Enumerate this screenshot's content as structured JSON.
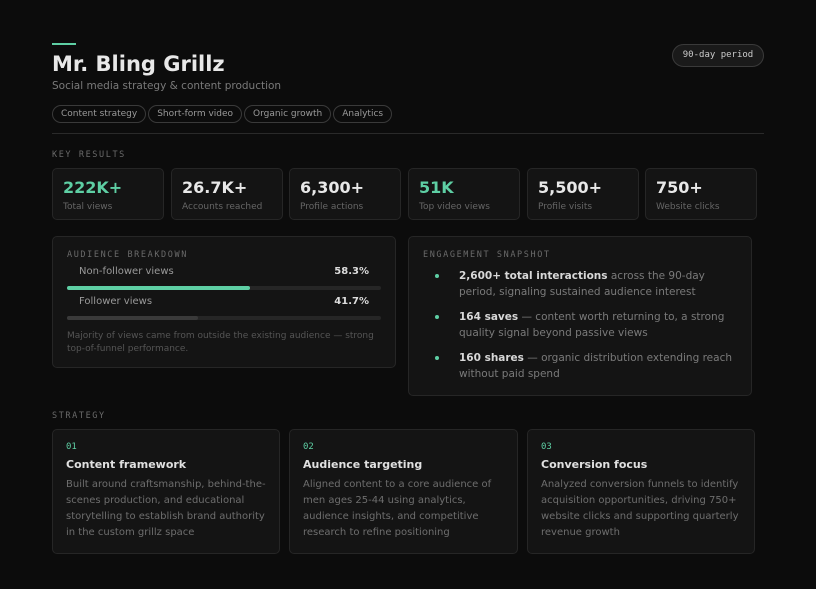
{
  "header": {
    "title": "Mr. Bling Grillz",
    "subtitle": "Social media strategy & content production",
    "tags": [
      "Content strategy",
      "Short-form video",
      "Organic growth",
      "Analytics"
    ],
    "badge": "90-day period"
  },
  "key_results": {
    "label": "KEY RESULTS",
    "items": [
      {
        "value": "222K+",
        "label": "Total views",
        "color": "#5ecfa4"
      },
      {
        "value": "26.7K+",
        "label": "Accounts reached",
        "color": "#e8e8e8"
      },
      {
        "value": "6,300+",
        "label": "Profile actions",
        "color": "#e8e8e8"
      },
      {
        "value": "51K",
        "label": "Top video views",
        "color": "#5ecfa4"
      },
      {
        "value": "5,500+",
        "label": "Profile visits",
        "color": "#e8e8e8"
      },
      {
        "value": "750+",
        "label": "Website clicks",
        "color": "#e8e8e8"
      }
    ]
  },
  "audience": {
    "label": "AUDIENCE BREAKDOWN",
    "rows": [
      {
        "name": "Non-follower views",
        "value": 58.3,
        "value_label": "58.3%",
        "color": "#5ecfa4"
      },
      {
        "name": "Follower views",
        "value": 41.7,
        "value_label": "41.7%",
        "color": "#3a3a3a"
      }
    ],
    "note": "Majority of views came from outside the existing audience — strong top-of-funnel performance."
  },
  "engagement": {
    "label": "ENGAGEMENT SNAPSHOT",
    "items": [
      {
        "bold": "2,600+ total interactions",
        "text": " across the 90-day period, signaling sustained audience interest"
      },
      {
        "bold": "164 saves",
        "text": " — content worth returning to, a strong quality signal beyond passive views"
      },
      {
        "bold": "160 shares",
        "text": " — organic distribution extending reach without paid spend"
      }
    ]
  },
  "strategy": {
    "label": "STRATEGY",
    "cards": [
      {
        "number": "01",
        "title": "Content framework",
        "text": "Built around craftsmanship, behind-the-scenes production, and educational storytelling to establish brand authority in the custom grillz space"
      },
      {
        "number": "02",
        "title": "Audience targeting",
        "text": "Aligned content to a core audience of men ages 25-44 using analytics, audience insights, and competitive research to refine positioning"
      },
      {
        "number": "03",
        "title": "Conversion focus",
        "text": "Analyzed conversion funnels to identify acquisition opportunities, driving 750+ website clicks and supporting quarterly revenue growth"
      }
    ]
  }
}
